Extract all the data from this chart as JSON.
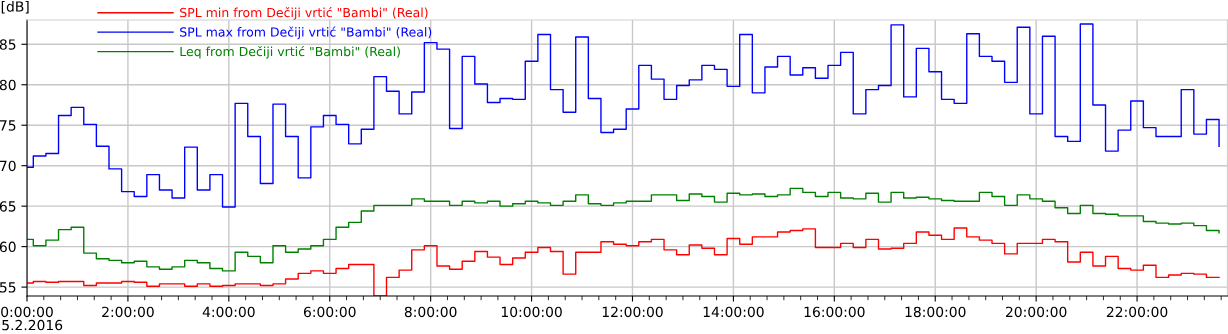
{
  "chart_data": {
    "type": "step",
    "ylabel": "[dB]",
    "x": [
      0,
      0.125,
      0.375,
      0.625,
      0.875,
      1.125,
      1.375,
      1.625,
      1.875,
      2.125,
      2.375,
      2.625,
      2.875,
      3.125,
      3.375,
      3.625,
      3.875,
      4.125,
      4.375,
      4.625,
      4.875,
      5.125,
      5.375,
      5.625,
      5.875,
      6.125,
      6.375,
      6.625,
      6.875,
      7.125,
      7.375,
      7.625,
      7.875,
      8.125,
      8.375,
      8.625,
      8.875,
      9.125,
      9.375,
      9.625,
      9.875,
      10.125,
      10.375,
      10.625,
      10.875,
      11.125,
      11.375,
      11.625,
      11.875,
      12.125,
      12.375,
      12.625,
      12.875,
      13.125,
      13.375,
      13.625,
      13.875,
      14.125,
      14.375,
      14.625,
      14.875,
      15.125,
      15.375,
      15.625,
      15.875,
      16.125,
      16.375,
      16.625,
      16.875,
      17.125,
      17.375,
      17.625,
      17.875,
      18.125,
      18.375,
      18.625,
      18.875,
      19.125,
      19.375,
      19.625,
      19.875,
      20.125,
      20.375,
      20.625,
      20.875,
      21.125,
      21.375,
      21.625,
      21.875,
      22.125,
      22.375,
      22.625,
      22.875,
      23.125,
      23.375,
      23.625
    ],
    "series": [
      {
        "name": "SPL min from Dečiji vrtić \"Bambi\" (Real)",
        "color": "#ff0000",
        "values": [
          55.5,
          55.7,
          55.6,
          55.7,
          55.7,
          55.2,
          55.5,
          55.5,
          55.7,
          55.6,
          55.1,
          55.4,
          55.4,
          55.1,
          55.4,
          55.1,
          55.2,
          55.4,
          55.4,
          55.2,
          55.4,
          56.0,
          56.7,
          57.0,
          56.7,
          57.3,
          57.8,
          57.8,
          53.9,
          56.2,
          57.1,
          59.6,
          60.1,
          57.6,
          57.2,
          58.2,
          59.4,
          58.7,
          57.8,
          58.6,
          59.3,
          59.9,
          59.4,
          56.6,
          59.3,
          59.3,
          60.6,
          60.3,
          60.1,
          60.6,
          60.9,
          59.6,
          59.0,
          60.2,
          59.8,
          59.0,
          61.0,
          60.3,
          61.2,
          61.2,
          61.8,
          62.0,
          62.2,
          59.9,
          59.9,
          60.4,
          59.9,
          60.9,
          59.7,
          59.8,
          60.4,
          61.8,
          61.4,
          60.9,
          62.3,
          61.2,
          60.8,
          60.4,
          59.1,
          60.4,
          60.4,
          60.9,
          60.6,
          58.1,
          59.3,
          57.6,
          58.8,
          57.3,
          57.1,
          57.7,
          56.2,
          56.5,
          56.7,
          56.6,
          56.2,
          56.2
        ]
      },
      {
        "name": "SPL max from Dečiji vrtić \"Bambi\" (Real)",
        "color": "#0000ff",
        "values": [
          69.8,
          71.2,
          71.5,
          76.2,
          77.2,
          75.1,
          72.4,
          69.6,
          66.8,
          66.2,
          68.9,
          67.0,
          66.0,
          72.3,
          67.0,
          68.9,
          64.9,
          77.7,
          73.6,
          67.8,
          77.6,
          73.6,
          68.5,
          74.8,
          76.2,
          75.1,
          72.7,
          74.5,
          81.0,
          79.2,
          76.4,
          79.1,
          85.2,
          84.4,
          74.6,
          83.5,
          80.1,
          77.8,
          78.3,
          78.2,
          82.9,
          86.2,
          79.4,
          76.6,
          85.9,
          78.3,
          74.1,
          74.5,
          77.0,
          82.4,
          80.7,
          78.2,
          79.9,
          80.6,
          82.4,
          81.9,
          79.8,
          86.2,
          79.0,
          82.2,
          83.5,
          81.2,
          82.1,
          80.8,
          82.4,
          84.0,
          76.4,
          79.4,
          79.9,
          87.4,
          78.5,
          84.5,
          81.6,
          78.2,
          77.7,
          86.3,
          83.5,
          82.9,
          80.3,
          87.1,
          76.4,
          86.0,
          73.6,
          73.0,
          87.5,
          77.5,
          71.8,
          74.4,
          78.0,
          74.7,
          73.6,
          73.6,
          79.4,
          73.9,
          75.7,
          72.4
        ]
      },
      {
        "name": "Leq from Dečiji vrtić \"Bambi\" (Real)",
        "color": "#008000",
        "values": [
          60.9,
          60.1,
          60.8,
          62.1,
          62.4,
          59.2,
          58.5,
          58.3,
          58.0,
          58.2,
          57.5,
          57.2,
          57.5,
          58.3,
          58.0,
          57.3,
          57.0,
          59.3,
          58.8,
          58.0,
          60.1,
          59.3,
          59.7,
          60.1,
          60.9,
          62.4,
          63.0,
          64.4,
          65.1,
          65.1,
          65.1,
          65.9,
          65.6,
          65.6,
          65.1,
          65.6,
          65.4,
          65.6,
          65.0,
          65.3,
          65.6,
          65.4,
          65.1,
          65.6,
          66.4,
          65.3,
          65.1,
          65.4,
          65.6,
          65.6,
          66.4,
          66.4,
          65.7,
          66.5,
          66.2,
          65.5,
          66.6,
          66.4,
          66.5,
          66.2,
          66.4,
          67.2,
          66.7,
          66.2,
          66.7,
          66.0,
          65.9,
          66.6,
          65.5,
          66.7,
          66.0,
          66.1,
          65.9,
          65.7,
          65.6,
          65.6,
          66.7,
          66.2,
          65.1,
          66.4,
          65.9,
          65.6,
          64.8,
          64.1,
          65.1,
          64.1,
          64.0,
          63.8,
          63.8,
          63.1,
          62.9,
          62.8,
          62.9,
          62.6,
          62.0,
          61.7
        ]
      }
    ],
    "xlim": [
      0,
      23.79
    ],
    "ylim": [
      53.9,
      88
    ],
    "yticks": [
      55,
      60,
      65,
      70,
      75,
      80,
      85
    ],
    "xticks": [
      {
        "value": 0,
        "label": "0:00:00"
      },
      {
        "value": 0.333,
        "label": null
      },
      {
        "value": 0.667,
        "label": null
      },
      {
        "value": 1,
        "label": null
      },
      {
        "value": 1.333,
        "label": null
      },
      {
        "value": 1.667,
        "label": null
      },
      {
        "value": 2,
        "label": "2:00:00"
      },
      {
        "value": 2.333,
        "label": null
      },
      {
        "value": 2.667,
        "label": null
      },
      {
        "value": 3,
        "label": null
      },
      {
        "value": 3.333,
        "label": null
      },
      {
        "value": 3.667,
        "label": null
      },
      {
        "value": 4,
        "label": "4:00:00"
      },
      {
        "value": 4.333,
        "label": null
      },
      {
        "value": 4.667,
        "label": null
      },
      {
        "value": 5,
        "label": null
      },
      {
        "value": 5.333,
        "label": null
      },
      {
        "value": 5.667,
        "label": null
      },
      {
        "value": 6,
        "label": "6:00:00"
      },
      {
        "value": 6.333,
        "label": null
      },
      {
        "value": 6.667,
        "label": null
      },
      {
        "value": 7,
        "label": null
      },
      {
        "value": 7.333,
        "label": null
      },
      {
        "value": 7.667,
        "label": null
      },
      {
        "value": 8,
        "label": "8:00:00"
      },
      {
        "value": 8.333,
        "label": null
      },
      {
        "value": 8.667,
        "label": null
      },
      {
        "value": 9,
        "label": null
      },
      {
        "value": 9.333,
        "label": null
      },
      {
        "value": 9.667,
        "label": null
      },
      {
        "value": 10,
        "label": "10:00:00"
      },
      {
        "value": 10.333,
        "label": null
      },
      {
        "value": 10.667,
        "label": null
      },
      {
        "value": 11,
        "label": null
      },
      {
        "value": 11.333,
        "label": null
      },
      {
        "value": 11.667,
        "label": null
      },
      {
        "value": 12,
        "label": "12:00:00"
      },
      {
        "value": 12.333,
        "label": null
      },
      {
        "value": 12.667,
        "label": null
      },
      {
        "value": 13,
        "label": null
      },
      {
        "value": 13.333,
        "label": null
      },
      {
        "value": 13.667,
        "label": null
      },
      {
        "value": 14,
        "label": "14:00:00"
      },
      {
        "value": 14.333,
        "label": null
      },
      {
        "value": 14.667,
        "label": null
      },
      {
        "value": 15,
        "label": null
      },
      {
        "value": 15.333,
        "label": null
      },
      {
        "value": 15.667,
        "label": null
      },
      {
        "value": 16,
        "label": "16:00:00"
      },
      {
        "value": 16.333,
        "label": null
      },
      {
        "value": 16.667,
        "label": null
      },
      {
        "value": 17,
        "label": null
      },
      {
        "value": 17.333,
        "label": null
      },
      {
        "value": 17.667,
        "label": null
      },
      {
        "value": 18,
        "label": "18:00:00"
      },
      {
        "value": 18.333,
        "label": null
      },
      {
        "value": 18.667,
        "label": null
      },
      {
        "value": 19,
        "label": null
      },
      {
        "value": 19.333,
        "label": null
      },
      {
        "value": 19.667,
        "label": null
      },
      {
        "value": 20,
        "label": "20:00:00"
      },
      {
        "value": 20.333,
        "label": null
      },
      {
        "value": 20.667,
        "label": null
      },
      {
        "value": 21,
        "label": null
      },
      {
        "value": 21.333,
        "label": null
      },
      {
        "value": 21.667,
        "label": null
      },
      {
        "value": 22,
        "label": "22:00:00"
      },
      {
        "value": 22.333,
        "label": null
      },
      {
        "value": 22.667,
        "label": null
      },
      {
        "value": 23,
        "label": null
      },
      {
        "value": 23.333,
        "label": null
      },
      {
        "value": 23.667,
        "label": null
      }
    ],
    "annotations": [
      "5.2.2016"
    ],
    "grid": true,
    "legend": "top left"
  }
}
